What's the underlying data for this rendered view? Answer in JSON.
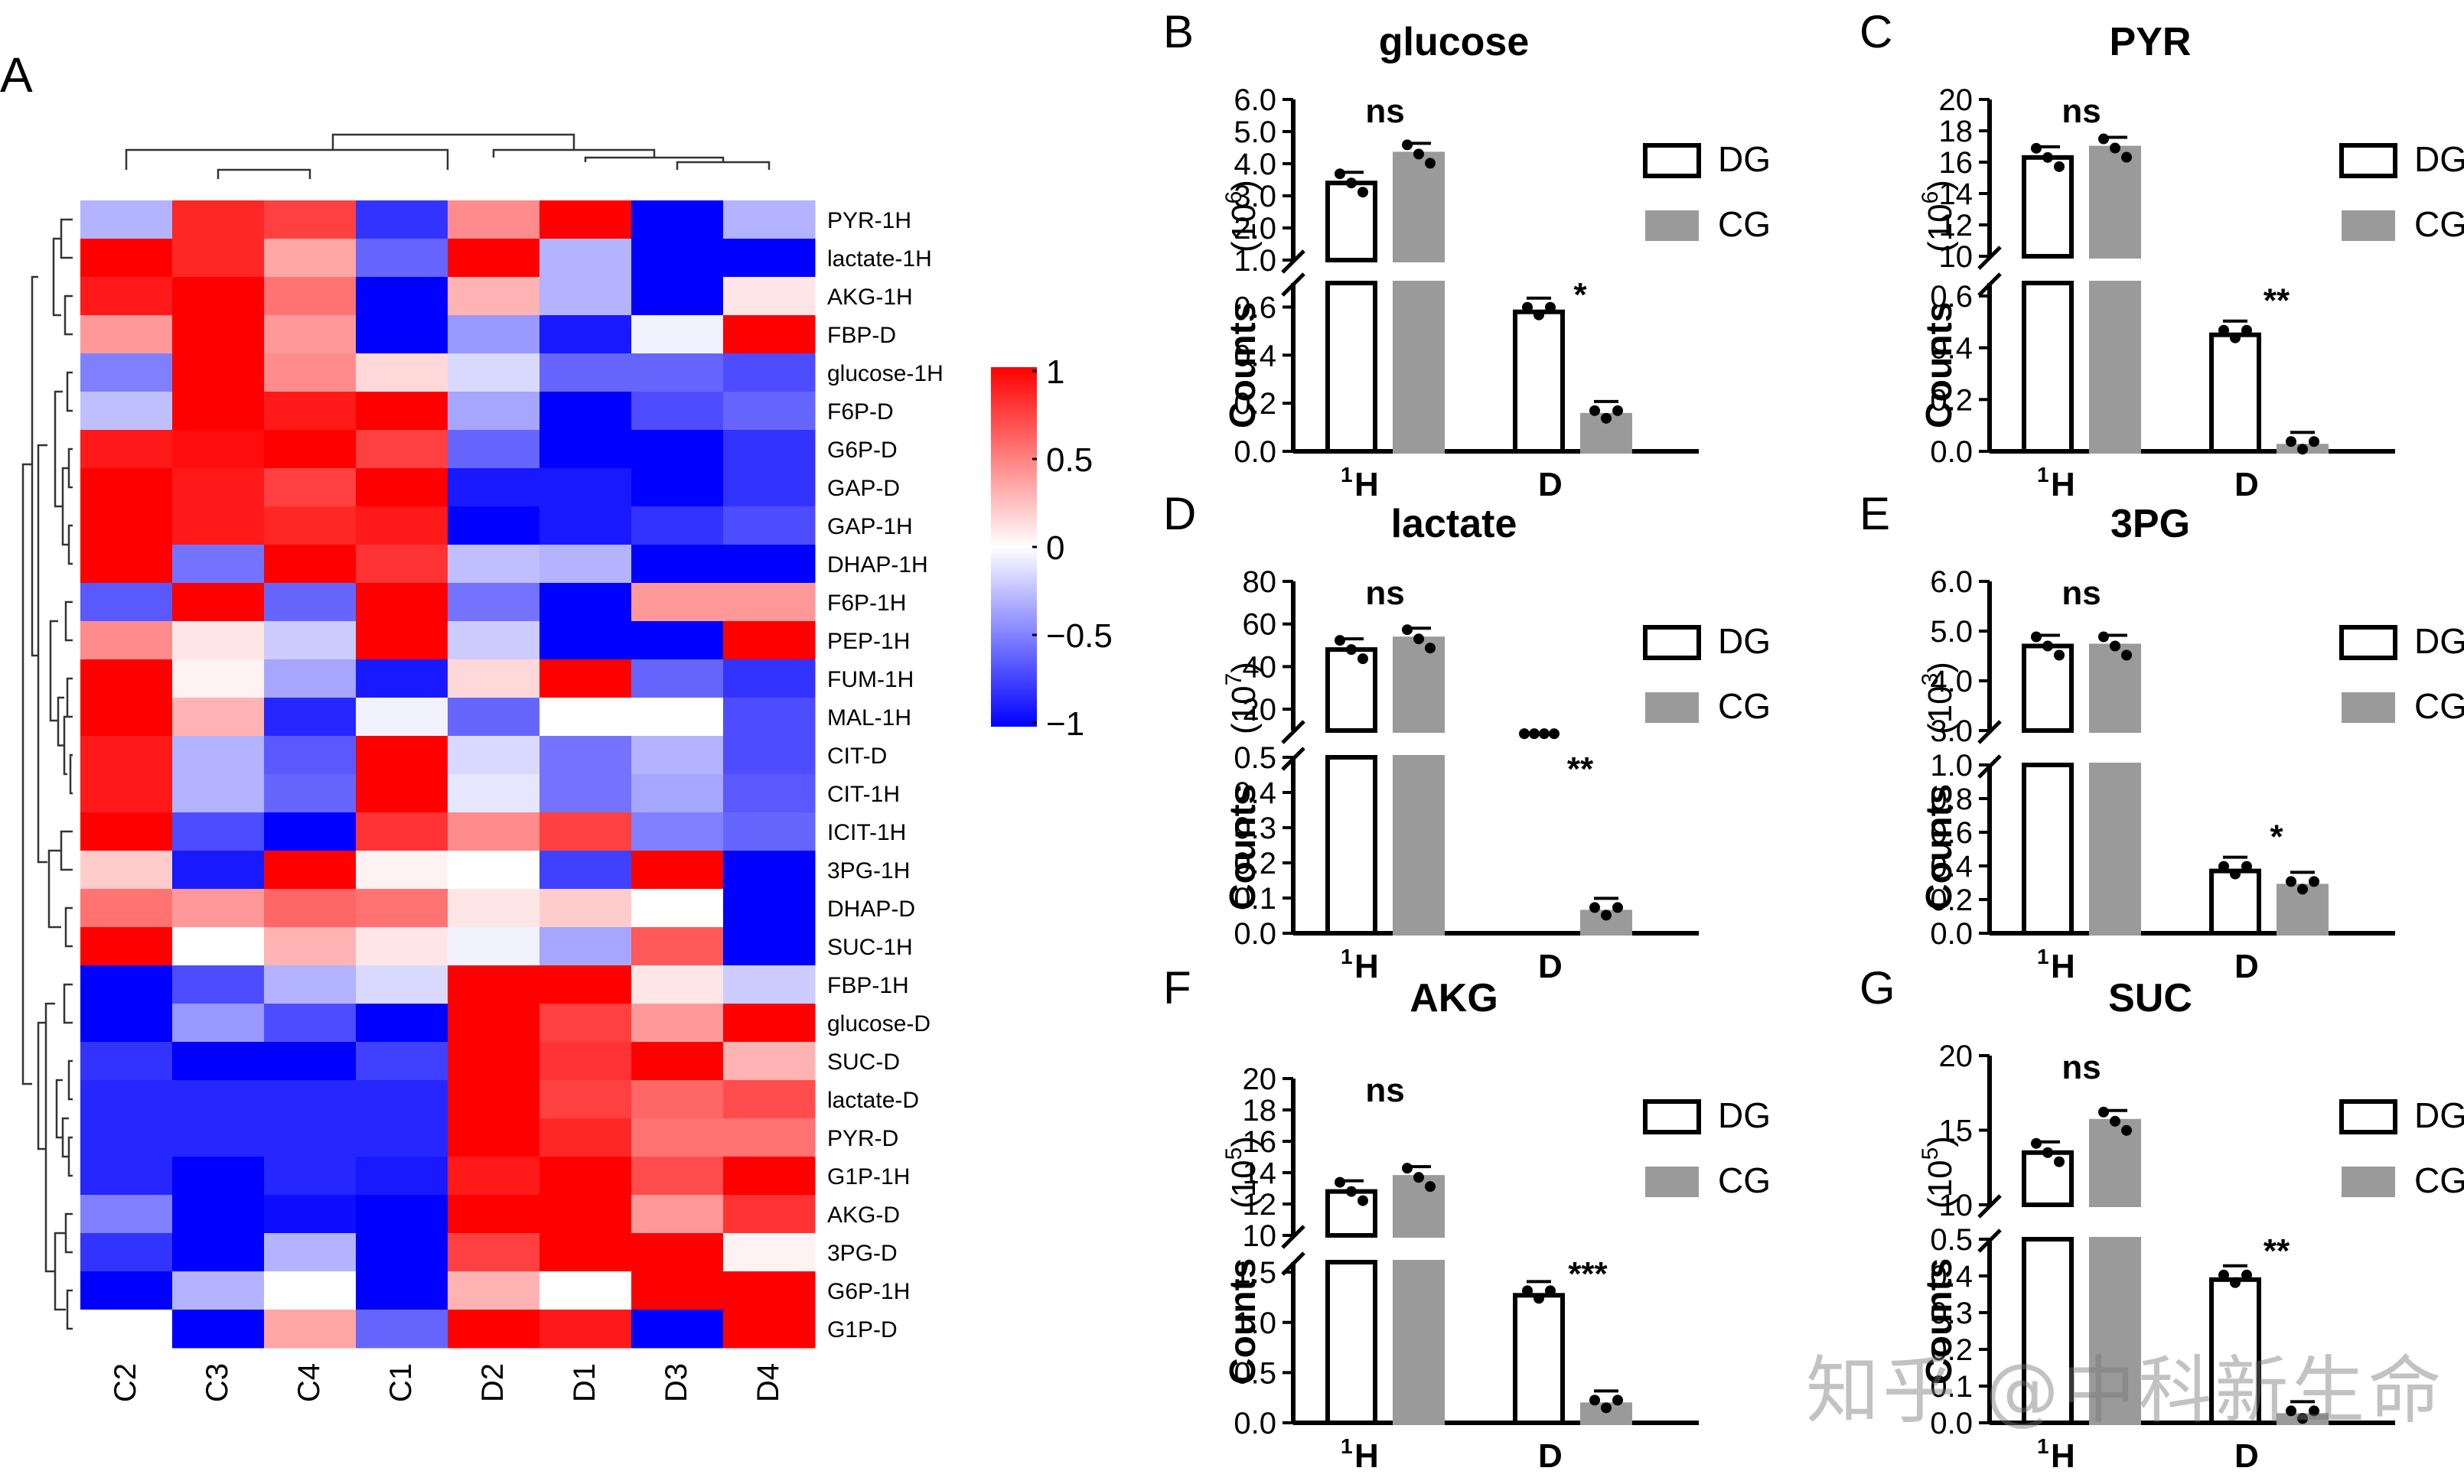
{
  "figure": {
    "watermark": "知乎 @中科新生命"
  },
  "chart_data": [
    {
      "panel": "A",
      "type": "heatmap",
      "title": "",
      "columns": [
        "C2",
        "C3",
        "C4",
        "C1",
        "D2",
        "D1",
        "D3",
        "D4"
      ],
      "rows": [
        "PYR-1H",
        "lactate-1H",
        "AKG-1H",
        "FBP-D",
        "glucose-1H",
        "F6P-D",
        "G6P-D",
        "GAP-D",
        "GAP-1H",
        "DHAP-1H",
        "F6P-1H",
        "PEP-1H",
        "FUM-1H",
        "MAL-1H",
        "CIT-D",
        "CIT-1H",
        "ICIT-1H",
        "3PG-1H",
        "DHAP-D",
        "SUC-1H",
        "FBP-1H",
        "glucose-D",
        "SUC-D",
        "lactate-D",
        "PYR-D",
        "G1P-1H",
        "AKG-D",
        "3PG-D",
        "G6P-1H",
        "G1P-D"
      ],
      "values": [
        [
          -0.3,
          0.85,
          0.75,
          -0.8,
          0.45,
          1.0,
          -1.0,
          -0.3
        ],
        [
          1.0,
          0.85,
          0.35,
          -0.6,
          1.0,
          -0.3,
          -1.0,
          -1.0
        ],
        [
          0.9,
          1.0,
          0.55,
          -1.0,
          0.3,
          -0.3,
          -1.0,
          0.1
        ],
        [
          0.4,
          1.0,
          0.4,
          -1.0,
          -0.4,
          -0.9,
          -0.05,
          1.0
        ],
        [
          -0.5,
          1.0,
          0.45,
          0.15,
          -0.15,
          -0.6,
          -0.6,
          -0.7
        ],
        [
          -0.25,
          1.0,
          0.9,
          1.0,
          -0.35,
          -1.0,
          -0.7,
          -0.6
        ],
        [
          0.9,
          0.95,
          1.0,
          0.75,
          -0.6,
          -1.0,
          -1.0,
          -0.8
        ],
        [
          1.0,
          0.9,
          0.75,
          1.0,
          -0.9,
          -0.9,
          -1.0,
          -0.8
        ],
        [
          1.0,
          0.9,
          0.85,
          0.9,
          -1.0,
          -0.9,
          -0.8,
          -0.7
        ],
        [
          1.0,
          -0.55,
          1.0,
          0.8,
          -0.25,
          -0.3,
          -1.0,
          -1.0
        ],
        [
          -0.65,
          1.0,
          -0.6,
          1.0,
          -0.55,
          -1.0,
          0.4,
          0.4
        ],
        [
          0.45,
          0.1,
          -0.2,
          1.0,
          -0.2,
          -1.0,
          -1.0,
          1.0
        ],
        [
          1.0,
          0.05,
          -0.35,
          -0.9,
          0.15,
          1.0,
          -0.6,
          -0.8
        ],
        [
          1.0,
          0.3,
          -0.85,
          -0.05,
          -0.6,
          0.0,
          0.0,
          -0.7
        ],
        [
          0.9,
          -0.3,
          -0.65,
          1.0,
          -0.15,
          -0.55,
          -0.3,
          -0.7
        ],
        [
          0.9,
          -0.3,
          -0.6,
          1.0,
          -0.1,
          -0.55,
          -0.35,
          -0.65
        ],
        [
          1.0,
          -0.7,
          -1.0,
          0.8,
          0.45,
          0.75,
          -0.5,
          -0.6
        ],
        [
          0.2,
          -0.9,
          1.0,
          0.05,
          0.0,
          -0.75,
          1.0,
          -1.0
        ],
        [
          0.55,
          0.4,
          0.6,
          0.55,
          0.1,
          0.2,
          0.0,
          -1.0
        ],
        [
          1.0,
          0.0,
          0.3,
          0.1,
          -0.05,
          -0.35,
          0.65,
          -1.0
        ],
        [
          -1.0,
          -0.7,
          -0.3,
          -0.15,
          1.0,
          1.0,
          0.1,
          -0.2
        ],
        [
          -1.0,
          -0.4,
          -0.7,
          -1.0,
          1.0,
          0.75,
          0.4,
          1.0
        ],
        [
          -0.8,
          -1.0,
          -1.0,
          -0.75,
          1.0,
          0.8,
          1.0,
          0.3
        ],
        [
          -0.85,
          -0.85,
          -0.85,
          -0.85,
          1.0,
          0.75,
          0.6,
          0.7
        ],
        [
          -0.85,
          -0.85,
          -0.85,
          -0.85,
          1.0,
          0.85,
          0.55,
          0.55
        ],
        [
          -0.85,
          -1.0,
          -0.85,
          -0.9,
          0.9,
          1.0,
          0.7,
          1.0
        ],
        [
          -0.5,
          -1.0,
          -0.95,
          -1.0,
          1.0,
          1.0,
          0.4,
          0.8
        ],
        [
          -0.8,
          -1.0,
          -0.3,
          -1.0,
          0.75,
          1.0,
          1.0,
          0.05
        ],
        [
          -1.0,
          -0.3,
          0.0,
          -1.0,
          0.3,
          0.0,
          1.0,
          1.0
        ],
        [
          0.0,
          -1.0,
          0.35,
          -0.6,
          1.0,
          0.9,
          -1.0,
          1.0
        ]
      ],
      "colorbar": {
        "ticks": [
          "1",
          "0.5",
          "0",
          "−0.5",
          "−1"
        ],
        "range": [
          -1,
          1
        ],
        "colors": [
          "#0000ff",
          "#ffffff",
          "#ff0000"
        ]
      }
    },
    {
      "panel": "B",
      "type": "bar",
      "title": "glucose",
      "categories": [
        "1H",
        "D"
      ],
      "series": [
        {
          "name": "DG",
          "values": [
            3.4,
            0.58
          ]
        },
        {
          "name": "CG",
          "values": [
            4.3,
            0.15
          ]
        }
      ],
      "sig_top": "ns",
      "sig_bottom": "*",
      "top_exp": "6",
      "top_ticks": [
        "6.0",
        "5.0",
        "4.0",
        "3.0",
        "2.0",
        "1.0"
      ],
      "bottom_ticks": [
        "0.6",
        "0.4",
        "0.2",
        "0.0"
      ],
      "ylabel": "Counts"
    },
    {
      "panel": "C",
      "type": "bar",
      "title": "PYR",
      "categories": [
        "1H",
        "D"
      ],
      "series": [
        {
          "name": "DG",
          "values": [
            16.3,
            0.45
          ]
        },
        {
          "name": "CG",
          "values": [
            16.9,
            0.02
          ]
        }
      ],
      "sig_top": "ns",
      "sig_bottom": "**",
      "top_exp": "6",
      "top_ticks": [
        "20",
        "18",
        "16",
        "14",
        "12",
        "10"
      ],
      "bottom_ticks": [
        "0.6",
        "0.4",
        "0.2",
        "0.0"
      ],
      "ylabel": "Counts"
    },
    {
      "panel": "D",
      "type": "bar",
      "title": "lactate",
      "categories": [
        "1H",
        "D"
      ],
      "series": [
        {
          "name": "DG",
          "values": [
            48,
            8.5
          ]
        },
        {
          "name": "CG",
          "values": [
            53,
            0.06
          ]
        }
      ],
      "sig_top": "ns",
      "sig_bottom": "**",
      "top_exp": "7",
      "top_ticks": [
        "80",
        "60",
        "40",
        "20"
      ],
      "bottom_ticks": [
        "0.5",
        "0.4",
        "0.3",
        "0.2",
        "0.1",
        "0.0"
      ],
      "ylabel": "Counts"
    },
    {
      "panel": "E",
      "type": "bar",
      "title": "3PG",
      "categories": [
        "1H",
        "D"
      ],
      "series": [
        {
          "name": "DG",
          "values": [
            4.7,
            0.37
          ]
        },
        {
          "name": "CG",
          "values": [
            4.7,
            0.28
          ]
        }
      ],
      "sig_top": "ns",
      "sig_bottom": "*",
      "top_exp": "3",
      "top_ticks": [
        "6.0",
        "5.0",
        "4.0",
        "3.0"
      ],
      "bottom_ticks": [
        "1.0",
        "0.8",
        "0.6",
        "0.4",
        "0.2",
        "0.0"
      ],
      "ylabel": "Counts"
    },
    {
      "panel": "F",
      "type": "bar",
      "title": "AKG",
      "categories": [
        "1H",
        "D"
      ],
      "series": [
        {
          "name": "DG",
          "values": [
            12.8,
            1.27
          ]
        },
        {
          "name": "CG",
          "values": [
            13.7,
            0.18
          ]
        }
      ],
      "sig_top": "ns",
      "sig_bottom": "***",
      "top_exp": "5",
      "top_ticks": [
        "20",
        "18",
        "16",
        "14",
        "12",
        "10"
      ],
      "bottom_ticks": [
        "1.5",
        "1.0",
        "0.5",
        "0.0"
      ],
      "ylabel": "Counts"
    },
    {
      "panel": "G",
      "type": "bar",
      "title": "SUC",
      "categories": [
        "1H",
        "D"
      ],
      "series": [
        {
          "name": "DG",
          "values": [
            13.5,
            0.39
          ]
        },
        {
          "name": "CG",
          "values": [
            15.6,
            0.02
          ]
        }
      ],
      "sig_top": "ns",
      "sig_bottom": "**",
      "top_exp": "5",
      "top_ticks": [
        "20",
        "15",
        "10"
      ],
      "bottom_ticks": [
        "0.5",
        "0.4",
        "0.3",
        "0.2",
        "0.1",
        "0.0"
      ],
      "ylabel": "Counts"
    }
  ]
}
